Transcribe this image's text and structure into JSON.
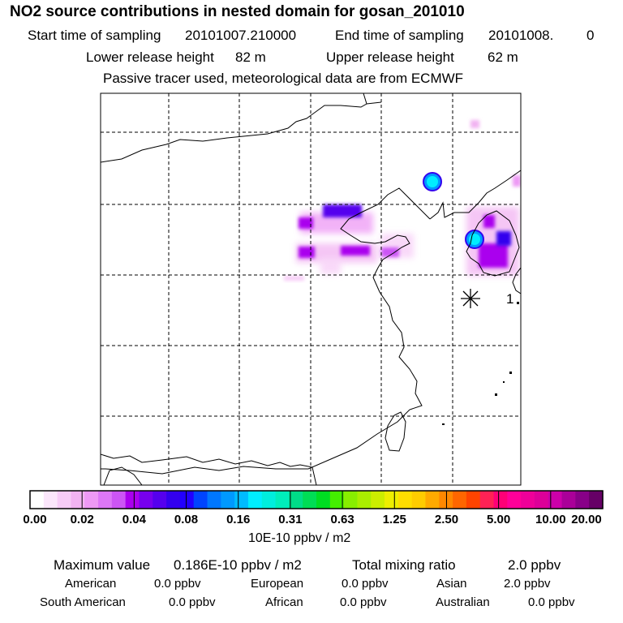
{
  "header": {
    "title": "NO2 source contributions in nested domain for gosan_201010",
    "start_label": "Start time of sampling",
    "start_value": "20101007.210000",
    "end_label": "End time of sampling",
    "end_value": "20101008.",
    "end_extra": "0",
    "lower_label": "Lower release height",
    "lower_value": "82 m",
    "upper_label": "Upper release height",
    "upper_value": "62 m",
    "subtitle": "Passive tracer used, meteorological data are from ECMWF"
  },
  "map": {
    "station_marker_icon": "asterisk-icon",
    "station_label": "1"
  },
  "colorbar": {
    "colors": [
      "#ffffff",
      "#fbe6fb",
      "#f7ccf7",
      "#f2b3f2",
      "#ee99f5",
      "#dd77f7",
      "#cc55f5",
      "#aa00ee",
      "#7700ee",
      "#5500ee",
      "#3300ee",
      "#2200ff",
      "#0044ff",
      "#0077ff",
      "#0099ff",
      "#00bbff",
      "#00eeff",
      "#00eedd",
      "#00eebb",
      "#00dd88",
      "#00dd55",
      "#00dd22",
      "#44ee00",
      "#88ee00",
      "#aaee00",
      "#ccee00",
      "#eeee00",
      "#ffdd00",
      "#ffcc00",
      "#ffaa00",
      "#ff8800",
      "#ff6600",
      "#ff4400",
      "#ff2255",
      "#ff0077",
      "#ff0099",
      "#ee0099",
      "#dd0099",
      "#cc00aa",
      "#aa0099",
      "#880088",
      "#660066"
    ],
    "labels": [
      "0.00",
      "0.02",
      "0.04",
      "0.08",
      "0.16",
      "0.31",
      "0.63",
      "1.25",
      "2.50",
      "5.00",
      "10.00",
      "20.00"
    ],
    "unit": "10E-10 ppbv / m2"
  },
  "summary": {
    "max_label": "Maximum value",
    "max_value": "0.186E-10 ppbv / m2",
    "total_label": "Total mixing ratio",
    "total_value": "2.0 ppbv",
    "american_label": "American",
    "american_value": "0.0 ppbv",
    "european_label": "European",
    "european_value": "0.0 ppbv",
    "asian_label": "Asian",
    "asian_value": "2.0 ppbv",
    "south_american_label": "South American",
    "south_american_value": "0.0 ppbv",
    "african_label": "African",
    "african_value": "0.0 ppbv",
    "australian_label": "Australian",
    "australian_value": "0.0 ppbv"
  }
}
